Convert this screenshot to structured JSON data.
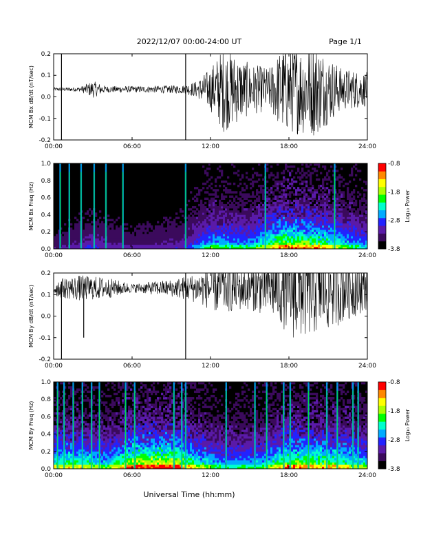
{
  "header": {
    "date_range": "2022/12/07  00:00-24:00 UT",
    "page": "Page 1/1"
  },
  "xlabel": "Universal Time (hh:mm)",
  "colors": {
    "colorbar": [
      "#000000",
      "#3b0a5c",
      "#5a1aa8",
      "#2222ff",
      "#00aaff",
      "#00ffcc",
      "#00ff00",
      "#aaff00",
      "#ffff00",
      "#ff8800",
      "#ff0000"
    ],
    "trace": "#000000"
  },
  "chart_data": [
    {
      "type": "line",
      "ylabel": "MCM Bx dB/dt (nT/sec)",
      "x_ticks": [
        "00:00",
        "06:00",
        "12:00",
        "18:00",
        "24:00"
      ],
      "x_range_hours": [
        0,
        24
      ],
      "y_ticks": [
        "0.2",
        "0.1",
        "0.0",
        "-0.1",
        "-0.2"
      ],
      "ylim": [
        -0.2,
        0.2
      ],
      "baseline": 0.035,
      "envelope": [
        {
          "hour": 0,
          "amp": 0.008
        },
        {
          "hour": 2,
          "amp": 0.01
        },
        {
          "hour": 3,
          "amp": 0.04
        },
        {
          "hour": 4,
          "amp": 0.015
        },
        {
          "hour": 7,
          "amp": 0.015
        },
        {
          "hour": 10,
          "amp": 0.02
        },
        {
          "hour": 11,
          "amp": 0.04
        },
        {
          "hour": 12,
          "amp": 0.1
        },
        {
          "hour": 13,
          "amp": 0.2
        },
        {
          "hour": 15,
          "amp": 0.12
        },
        {
          "hour": 16.5,
          "amp": 0.1
        },
        {
          "hour": 17.5,
          "amp": 0.2
        },
        {
          "hour": 20,
          "amp": 0.22
        },
        {
          "hour": 22,
          "amp": 0.1
        },
        {
          "hour": 24,
          "amp": 0.08
        }
      ],
      "spikes": [
        {
          "hour": 0.6,
          "min": -0.2,
          "max": 0.2
        },
        {
          "hour": 10.1,
          "min": -0.2,
          "max": 0.2
        }
      ]
    },
    {
      "type": "heatmap",
      "ylabel": "MCM Bx Freq (Hz)",
      "colorbar_label": "Log₁₀ Power",
      "colorbar_ticks": [
        "-0.8",
        "-1.8",
        "-2.8",
        "-3.8"
      ],
      "color_range": [
        -3.8,
        -0.8
      ],
      "x_ticks": [
        "00:00",
        "06:00",
        "12:00",
        "18:00",
        "24:00"
      ],
      "x_range_hours": [
        0,
        24
      ],
      "y_ticks": [
        "1.0",
        "0.8",
        "0.6",
        "0.4",
        "0.2",
        "0.0"
      ],
      "ylim": [
        0,
        1.0
      ],
      "activity": [
        {
          "hour": 0,
          "level": 0.1
        },
        {
          "hour": 3,
          "level": 0.2
        },
        {
          "hour": 6,
          "level": 0.12
        },
        {
          "hour": 10,
          "level": 0.18
        },
        {
          "hour": 12,
          "level": 0.45
        },
        {
          "hour": 15,
          "level": 0.4
        },
        {
          "hour": 17.5,
          "level": 0.7
        },
        {
          "hour": 20,
          "level": 0.65
        },
        {
          "hour": 24,
          "level": 0.35
        }
      ],
      "bright_columns": [
        0.5,
        1.2,
        2.1,
        3.1,
        4.0,
        5.3,
        10.1,
        16.2,
        21.5
      ]
    },
    {
      "type": "line",
      "ylabel": "MCM By dB/dt (nT/sec)",
      "x_ticks": [
        "00:00",
        "06:00",
        "12:00",
        "18:00",
        "24:00"
      ],
      "x_range_hours": [
        0,
        24
      ],
      "y_ticks": [
        "0.2",
        "0.1",
        "0.0",
        "-0.1",
        "-0.2"
      ],
      "ylim": [
        -0.2,
        0.2
      ],
      "baseline": 0.13,
      "envelope": [
        {
          "hour": 0,
          "amp": 0.04
        },
        {
          "hour": 2,
          "amp": 0.06
        },
        {
          "hour": 4,
          "amp": 0.05
        },
        {
          "hour": 6,
          "amp": 0.02
        },
        {
          "hour": 9,
          "amp": 0.04
        },
        {
          "hour": 11,
          "amp": 0.07
        },
        {
          "hour": 12.5,
          "amp": 0.12
        },
        {
          "hour": 15,
          "amp": 0.1
        },
        {
          "hour": 17,
          "amp": 0.15
        },
        {
          "hour": 18.5,
          "amp": 0.25
        },
        {
          "hour": 21,
          "amp": 0.2
        },
        {
          "hour": 24,
          "amp": 0.1
        }
      ],
      "spikes": [
        {
          "hour": 0.6,
          "min": -0.2,
          "max": 0.16
        },
        {
          "hour": 10.1,
          "min": -0.2,
          "max": 0.2
        },
        {
          "hour": 2.3,
          "min": -0.1,
          "max": 0.15
        }
      ]
    },
    {
      "type": "heatmap",
      "ylabel": "MCM By Freq (Hz)",
      "colorbar_label": "Log₁₀ Power",
      "colorbar_ticks": [
        "-0.8",
        "-1.8",
        "-2.8",
        "-3.8"
      ],
      "color_range": [
        -3.8,
        -0.8
      ],
      "x_ticks": [
        "00:00",
        "06:00",
        "12:00",
        "18:00",
        "24:00"
      ],
      "x_range_hours": [
        0,
        24
      ],
      "y_ticks": [
        "1.0",
        "0.8",
        "0.6",
        "0.4",
        "0.2",
        "0.0"
      ],
      "ylim": [
        0,
        1.0
      ],
      "activity": [
        {
          "hour": 0,
          "level": 0.55
        },
        {
          "hour": 2,
          "level": 0.6
        },
        {
          "hour": 4,
          "level": 0.45
        },
        {
          "hour": 6,
          "level": 0.75
        },
        {
          "hour": 9,
          "level": 0.8
        },
        {
          "hour": 11,
          "level": 0.55
        },
        {
          "hour": 13,
          "level": 0.4
        },
        {
          "hour": 16,
          "level": 0.45
        },
        {
          "hour": 18,
          "level": 0.7
        },
        {
          "hour": 21,
          "level": 0.65
        },
        {
          "hour": 24,
          "level": 0.5
        }
      ],
      "bright_columns": [
        0.3,
        0.8,
        1.5,
        2.2,
        2.9,
        3.5,
        5.5,
        6.2,
        9.2,
        9.8,
        10.1,
        13.2,
        15.4,
        16.3,
        17.6,
        18.1,
        19.5,
        20.9,
        21.7,
        22.9,
        23.3
      ]
    }
  ]
}
